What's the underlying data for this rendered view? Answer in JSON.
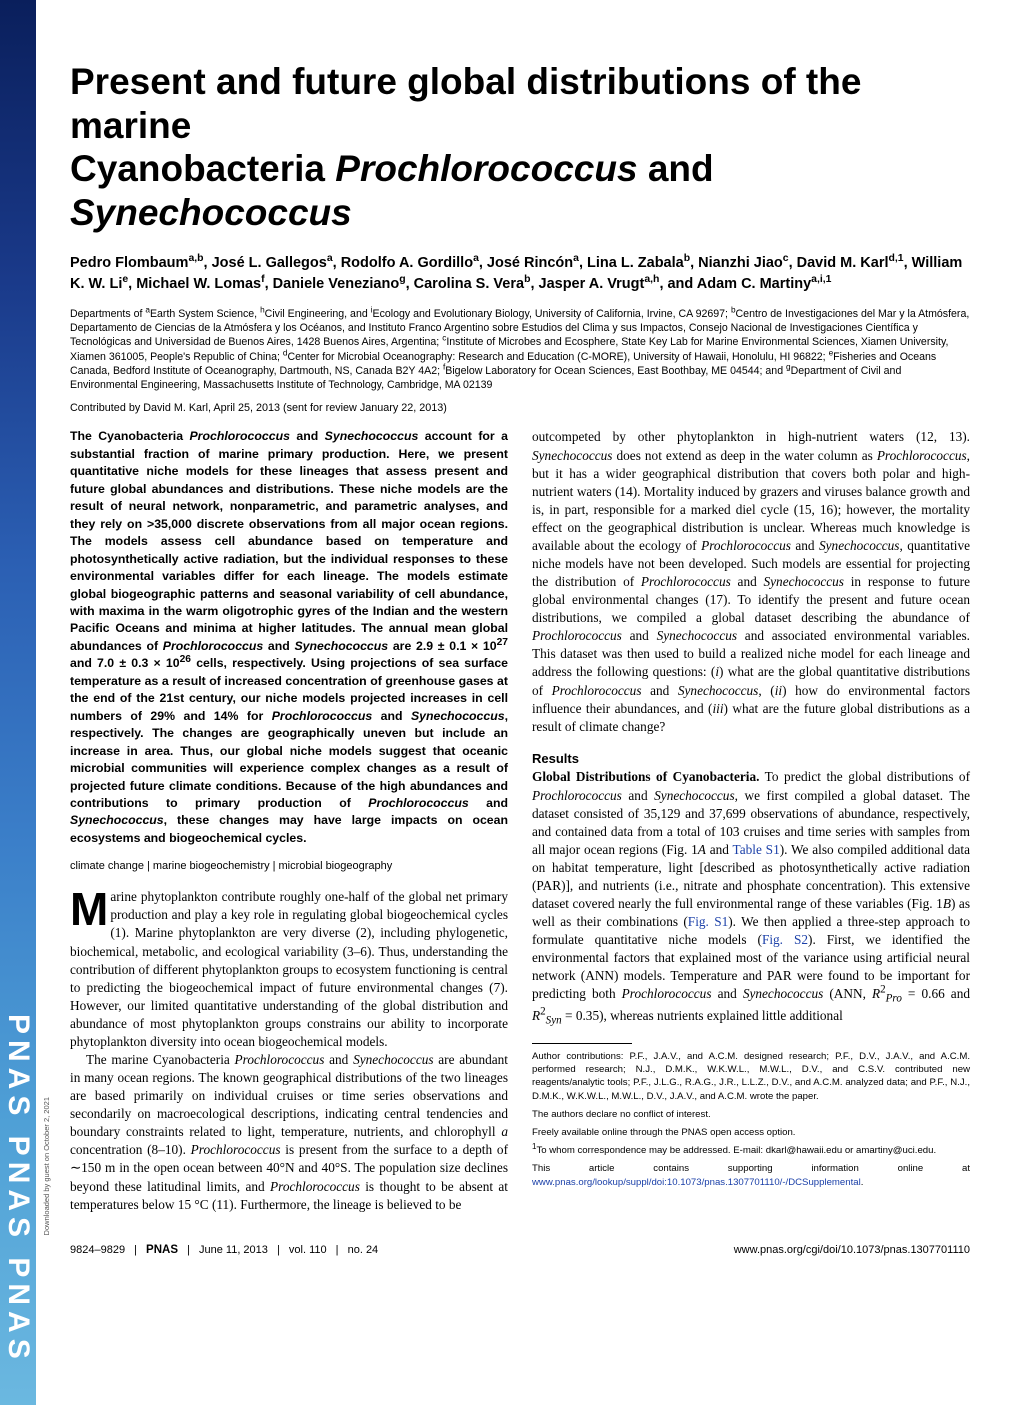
{
  "journal": {
    "spine_text": "PNAS  PNAS  PNAS"
  },
  "title": {
    "line1": "Present and future global distributions of the marine",
    "line2_pre": "Cyanobacteria ",
    "line2_ital1": "Prochlorococcus",
    "line2_mid": " and ",
    "line2_ital2": "Synechococcus"
  },
  "authors_html": "Pedro Flombaum<sup>a,b</sup>, José L. Gallegos<sup>a</sup>, Rodolfo A. Gordillo<sup>a</sup>, José Rincón<sup>a</sup>, Lina L. Zabala<sup>b</sup>, Nianzhi Jiao<sup>c</sup>, David M. Karl<sup>d,1</sup>, William K. W. Li<sup>e</sup>, Michael W. Lomas<sup>f</sup>, Daniele Veneziano<sup>g</sup>, Carolina S. Vera<sup>b</sup>, Jasper A. Vrugt<sup>a,h</sup>, and Adam C. Martiny<sup>a,i,1</sup>",
  "affiliations_html": "Departments of <sup>a</sup>Earth System Science, <sup>h</sup>Civil Engineering, and <sup>i</sup>Ecology and Evolutionary Biology, University of California, Irvine, CA 92697; <sup>b</sup>Centro de Investigaciones del Mar y la Atmósfera, Departamento de Ciencias de la Atmósfera y los Océanos, and Instituto Franco Argentino sobre Estudios del Clima y sus Impactos, Consejo Nacional de Investigaciones Científica y Tecnológicas and Universidad de Buenos Aires, 1428 Buenos Aires, Argentina; <sup>c</sup>Institute of Microbes and Ecosphere, State Key Lab for Marine Environmental Sciences, Xiamen University, Xiamen 361005, People's Republic of China; <sup>d</sup>Center for Microbial Oceanography: Research and Education (C-MORE), University of Hawaii, Honolulu, HI 96822; <sup>e</sup>Fisheries and Oceans Canada, Bedford Institute of Oceanography, Dartmouth, NS, Canada B2Y 4A2; <sup>f</sup>Bigelow Laboratory for Ocean Sciences, East Boothbay, ME 04544; and <sup>g</sup>Department of Civil and Environmental Engineering, Massachusetts Institute of Technology, Cambridge, MA 02139",
  "contributed": "Contributed by David M. Karl, April 25, 2013 (sent for review January 22, 2013)",
  "abstract_html": "The Cyanobacteria <span class=\"ital\">Prochlorococcus</span> and <span class=\"ital\">Synechococcus</span> account for a substantial fraction of marine primary production. Here, we present quantitative niche models for these lineages that assess present and future global abundances and distributions. These niche models are the result of neural network, nonparametric, and parametric analyses, and they rely on &gt;35,000 discrete observations from all major ocean regions. The models assess cell abundance based on temperature and photosynthetically active radiation, but the individual responses to these environmental variables differ for each lineage. The models estimate global biogeographic patterns and seasonal variability of cell abundance, with maxima in the warm oligotrophic gyres of the Indian and the western Pacific Oceans and minima at higher latitudes. The annual mean global abundances of <span class=\"ital\">Prochlorococcus</span> and <span class=\"ital\">Synechococcus</span> are 2.9 ± 0.1 × 10<sup>27</sup> and 7.0 ± 0.3 × 10<sup>26</sup> cells, respectively. Using projections of sea surface temperature as a result of increased concentration of greenhouse gases at the end of the 21st century, our niche models projected increases in cell numbers of 29% and 14% for <span class=\"ital\">Prochlorococcus</span> and <span class=\"ital\">Synechococcus</span>, respectively. The changes are geographically uneven but include an increase in area. Thus, our global niche models suggest that oceanic microbial communities will experience complex changes as a result of projected future climate conditions. Because of the high abundances and contributions to primary production of <span class=\"ital\">Prochlorococcus</span> and <span class=\"ital\">Synechococcus</span>, these changes may have large impacts on ocean ecosystems and biogeochemical cycles.",
  "keywords": {
    "k1": "climate change",
    "k2": "marine biogeochemistry",
    "k3": "microbial biogeography"
  },
  "body": {
    "p1_html": "Marine phytoplankton contribute roughly one-half of the global net primary production and play a key role in regulating global biogeochemical cycles (1). Marine phytoplankton are very diverse (2), including phylogenetic, biochemical, metabolic, and ecological variability (3–6). Thus, understanding the contribution of different phytoplankton groups to ecosystem functioning is central to predicting the biogeochemical impact of future environmental changes (7). However, our limited quantitative understanding of the global distribution and abundance of most phytoplankton groups constrains our ability to incorporate phytoplankton diversity into ocean biogeochemical models.",
    "p2_html": "The marine Cyanobacteria <span class=\"ital\">Prochlorococcus</span> and <span class=\"ital\">Synechococcus</span> are abundant in many ocean regions. The known geographical distributions of the two lineages are based primarily on individual cruises or time series observations and secondarily on macroecological descriptions, indicating central tendencies and boundary constraints related to light, temperature, nutrients, and chlorophyll <span class=\"ital\">a</span> concentration (8–10). <span class=\"ital\">Prochlorococcus</span> is present from the surface to a depth of ∼150 m in the open ocean between 40°N and 40°S. The population size declines beyond these latitudinal limits, and <span class=\"ital\">Prochlorococcus</span> is thought to be absent at temperatures below 15 °C (11). Furthermore, the lineage is believed to be",
    "p3_html": "outcompeted by other phytoplankton in high-nutrient waters (12, 13). <span class=\"ital\">Synechococcus</span> does not extend as deep in the water column as <span class=\"ital\">Prochlorococcus</span>, but it has a wider geographical distribution that covers both polar and high-nutrient waters (14). Mortality induced by grazers and viruses balance growth and is, in part, responsible for a marked diel cycle (15, 16); however, the mortality effect on the geographical distribution is unclear. Whereas much knowledge is available about the ecology of <span class=\"ital\">Prochlorococcus</span> and <span class=\"ital\">Synechococcus</span>, quantitative niche models have not been developed. Such models are essential for projecting the distribution of <span class=\"ital\">Prochlorococcus</span> and <span class=\"ital\">Synechococcus</span> in response to future global environmental changes (17). To identify the present and future ocean distributions, we compiled a global dataset describing the abundance of <span class=\"ital\">Prochlorococcus</span> and <span class=\"ital\">Synechococcus</span> and associated environmental variables. This dataset was then used to build a realized niche model for each lineage and address the following questions: (<span class=\"ital\">i</span>) what are the global quantitative distributions of <span class=\"ital\">Prochlorococcus</span> and <span class=\"ital\">Synechococcus</span>, (<span class=\"ital\">ii</span>) how do environmental factors influence their abundances, and (<span class=\"ital\">iii</span>) what are the future global distributions as a result of climate change?",
    "results_h": "Results",
    "p4_html": "<span class=\"subhead\">Global Distributions of Cyanobacteria.</span> To predict the global distributions of <span class=\"ital\">Prochlorococcus</span> and <span class=\"ital\">Synechococcus</span>, we first compiled a global dataset. The dataset consisted of 35,129 and 37,699 observations of abundance, respectively, and contained data from a total of 103 cruises and time series with samples from all major ocean regions (Fig. 1<span class=\"ital\">A</span> and <a class=\"link\" href=\"#\">Table S1</a>). We also compiled additional data on habitat temperature, light [described as photosynthetically active radiation (PAR)], and nutrients (i.e., nitrate and phosphate concentration). This extensive dataset covered nearly the full environmental range of these variables (Fig. 1<span class=\"ital\">B</span>) as well as their combinations (<a class=\"link\" href=\"#\">Fig. S1</a>). We then applied a three-step approach to formulate quantitative niche models (<a class=\"link\" href=\"#\">Fig. S2</a>). First, we identified the environmental factors that explained most of the variance using artificial neural network (ANN) models. Temperature and PAR were found to be important for predicting both <span class=\"ital\">Prochlorococcus</span> and <span class=\"ital\">Synechococcus</span> (ANN, <span class=\"ital\">R</span><sup>2</sup><sub><span class=\"ital\">Pro</span></sub> = 0.66 and <span class=\"ital\">R</span><sup>2</sup><sub><span class=\"ital\">Syn</span></sub> = 0.35), whereas nutrients explained little additional"
  },
  "notes": {
    "contrib": "Author contributions: P.F., J.A.V., and A.C.M. designed research; P.F., D.V., J.A.V., and A.C.M. performed research; N.J., D.M.K., W.K.W.L., M.W.L., D.V., and C.S.V. contributed new reagents/analytic tools; P.F., J.L.G., R.A.G., J.R., L.L.Z., D.V., and A.C.M. analyzed data; and P.F., N.J., D.M.K., W.K.W.L., M.W.L., D.V., J.A.V., and A.C.M. wrote the paper.",
    "conflict": "The authors declare no conflict of interest.",
    "open": "Freely available online through the PNAS open access option.",
    "corr_html": "<sup>1</sup>To whom correspondence may be addressed. E-mail: dkarl@hawaii.edu or amartiny@uci.edu.",
    "supp_pre": "This article contains supporting information online at ",
    "supp_link": "www.pnas.org/lookup/suppl/doi:10.1073/pnas.1307701110/-/DCSupplemental",
    "supp_post": "."
  },
  "footer": {
    "pages": "9824–9829",
    "pnas": "PNAS",
    "date": "June 11, 2013",
    "vol": "vol. 110",
    "no": "no. 24",
    "doi": "www.pnas.org/cgi/doi/10.1073/pnas.1307701110"
  },
  "download": "Downloaded by guest on October 2, 2021"
}
